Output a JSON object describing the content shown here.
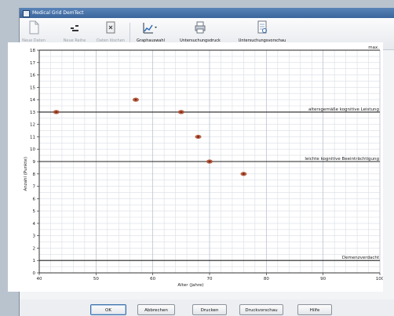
{
  "window": {
    "title": "Medical Grid DemTect"
  },
  "toolbar": {
    "buttons": [
      {
        "label": "Neue Daten",
        "enabled": false,
        "icon": "new-document-icon"
      },
      {
        "label": "Neue Reihe",
        "enabled": false,
        "icon": "new-series-icon"
      },
      {
        "label": "Daten löschen",
        "enabled": false,
        "icon": "delete-data-icon"
      },
      {
        "label": "Graphauswahl",
        "enabled": true,
        "icon": "graph-select-icon"
      },
      {
        "label": "Untersuchungsdruck",
        "enabled": true,
        "icon": "print-icon"
      },
      {
        "label": "Untersuchungsvorschau",
        "enabled": true,
        "icon": "print-preview-icon"
      }
    ]
  },
  "chart_data": {
    "type": "scatter",
    "xlabel": "Alter (Jahre)",
    "ylabel": "Anzahl (Punkte)",
    "xlim": [
      40,
      100
    ],
    "ylim": [
      0,
      18
    ],
    "x_ticks": [
      40,
      50,
      60,
      70,
      80,
      90,
      100
    ],
    "y_ticks": [
      0,
      1,
      2,
      3,
      4,
      5,
      6,
      7,
      8,
      9,
      10,
      11,
      12,
      13,
      14,
      15,
      16,
      17,
      18
    ],
    "grid": true,
    "marker_color": "#b04a2a",
    "points": [
      {
        "x": 43,
        "y": 13
      },
      {
        "x": 57,
        "y": 14
      },
      {
        "x": 65,
        "y": 13
      },
      {
        "x": 68,
        "y": 11
      },
      {
        "x": 70,
        "y": 9
      },
      {
        "x": 76,
        "y": 8
      }
    ],
    "reference_lines": [
      {
        "y": 18,
        "label": "max."
      },
      {
        "y": 13,
        "label": "altersgemäße kognitive Leistung"
      },
      {
        "y": 9,
        "label": "leichte kognitive Beeinträchtigung"
      },
      {
        "y": 1,
        "label": "Demenzverdacht"
      }
    ]
  },
  "buttons": {
    "ok": "OK",
    "cancel": "Abbrechen",
    "print": "Drucken",
    "preview": "Druckvorschau",
    "help": "Hilfe"
  }
}
